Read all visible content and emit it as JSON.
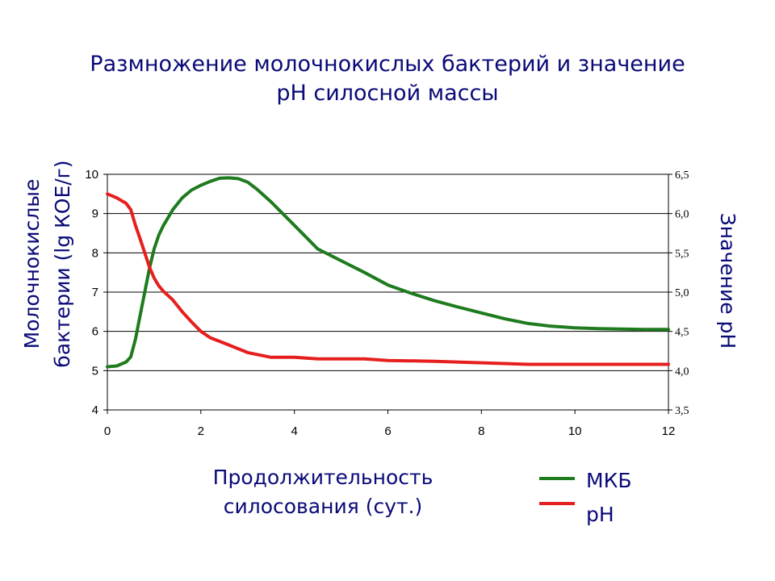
{
  "chart_data": {
    "type": "line",
    "title_lines": [
      "Размножение молочнокислых бактерий и значение",
      "pH силосной массы"
    ],
    "xlabel_lines": [
      "Продолжительность",
      "силосования (сут.)"
    ],
    "ylabel_left_lines": [
      "Молочнокислые",
      "бактерии (lg КОЕ/г)"
    ],
    "ylabel_right": "Значение pH",
    "xlim": [
      0,
      12
    ],
    "ylim_left": [
      4,
      10
    ],
    "ylim_right": [
      3.5,
      6.5
    ],
    "x_ticks": [
      "0",
      "2",
      "4",
      "6",
      "8",
      "10",
      "12"
    ],
    "y_left_ticks": [
      "4",
      "5",
      "6",
      "7",
      "8",
      "9",
      "10"
    ],
    "y_right_ticks": [
      "3,5",
      "4,0",
      "4,5",
      "5,0",
      "5,5",
      "6,0",
      "6,5"
    ],
    "grid": "horizontal",
    "legend_position": "bottom-right",
    "series": [
      {
        "name": "МКБ",
        "axis": "left",
        "color": "#1e7b1e",
        "x": [
          0,
          0.2,
          0.4,
          0.5,
          0.6,
          0.7,
          0.8,
          0.9,
          1.0,
          1.1,
          1.2,
          1.4,
          1.6,
          1.8,
          2.0,
          2.2,
          2.4,
          2.6,
          2.8,
          3.0,
          3.2,
          3.5,
          4.0,
          4.5,
          5.0,
          5.5,
          6.0,
          6.5,
          7.0,
          7.5,
          8.0,
          8.5,
          9.0,
          9.5,
          10.0,
          10.5,
          11.0,
          11.5,
          12.0
        ],
        "values": [
          5.1,
          5.12,
          5.22,
          5.35,
          5.8,
          6.4,
          7.0,
          7.6,
          8.1,
          8.45,
          8.7,
          9.1,
          9.4,
          9.6,
          9.72,
          9.82,
          9.9,
          9.91,
          9.89,
          9.8,
          9.62,
          9.3,
          8.7,
          8.1,
          7.8,
          7.5,
          7.18,
          6.97,
          6.78,
          6.62,
          6.47,
          6.32,
          6.2,
          6.13,
          6.09,
          6.07,
          6.06,
          6.05,
          6.05
        ]
      },
      {
        "name": "pH",
        "axis": "right",
        "color": "#e61e1e",
        "x": [
          0,
          0.2,
          0.4,
          0.5,
          0.6,
          0.7,
          0.8,
          0.9,
          1.0,
          1.1,
          1.2,
          1.4,
          1.6,
          1.8,
          2.0,
          2.2,
          2.5,
          3.0,
          3.5,
          4.0,
          4.5,
          5.0,
          5.5,
          6.0,
          7.0,
          8.0,
          9.0,
          10.0,
          11.0,
          12.0
        ],
        "values": [
          6.25,
          6.2,
          6.13,
          6.05,
          5.85,
          5.68,
          5.5,
          5.32,
          5.18,
          5.08,
          5.01,
          4.9,
          4.75,
          4.62,
          4.5,
          4.42,
          4.35,
          4.23,
          4.17,
          4.17,
          4.15,
          4.15,
          4.15,
          4.13,
          4.12,
          4.1,
          4.08,
          4.08,
          4.08,
          4.08
        ]
      }
    ]
  }
}
